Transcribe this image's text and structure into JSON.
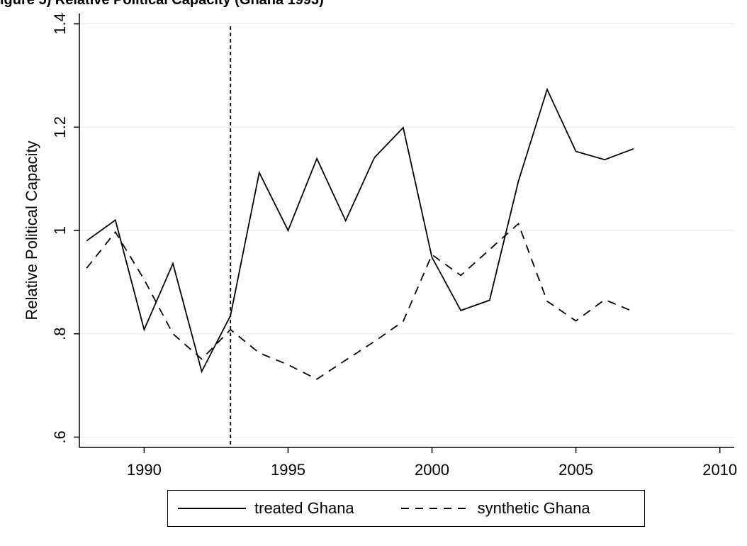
{
  "caption": "igure 5) Relative Political Capacity (Ghana 1993)",
  "chart_data": {
    "type": "line",
    "title": "",
    "xlabel": "",
    "ylabel": "Relative Political Capacity",
    "xlim": [
      1987.75,
      2010.5
    ],
    "ylim": [
      0.58,
      1.42
    ],
    "xticks": [
      1990,
      1995,
      2000,
      2005,
      2010
    ],
    "yticks": [
      0.6,
      0.8,
      1.0,
      1.2,
      1.4
    ],
    "xtick_labels": [
      "1990",
      "1995",
      "2000",
      "2005",
      "2010"
    ],
    "ytick_labels": [
      ".6",
      ".8",
      "1",
      "1.2",
      "1.4"
    ],
    "grid": true,
    "vertical_line": 1993,
    "legend_position": "bottom",
    "x": [
      1988,
      1989,
      1990,
      1991,
      1992,
      1993,
      1994,
      1995,
      1996,
      1997,
      1998,
      1999,
      2000,
      2001,
      2002,
      2003,
      2004,
      2005,
      2006,
      2007
    ],
    "series": [
      {
        "name": "treated Ghana",
        "style": "solid",
        "values": [
          0.98,
          1.02,
          0.808,
          0.936,
          0.727,
          0.835,
          1.112,
          1.0,
          1.139,
          1.019,
          1.141,
          1.199,
          0.948,
          0.845,
          0.865,
          1.095,
          1.273,
          1.153,
          1.137,
          1.158
        ]
      },
      {
        "name": "synthetic Ghana",
        "style": "dashed",
        "values": [
          0.927,
          0.997,
          0.905,
          0.8,
          0.751,
          0.808,
          0.763,
          0.74,
          0.712,
          0.749,
          0.785,
          0.824,
          0.953,
          0.913,
          0.963,
          1.013,
          0.863,
          0.825,
          0.866,
          0.843
        ]
      }
    ]
  },
  "legend": {
    "items": [
      {
        "label": "treated Ghana"
      },
      {
        "label": "synthetic Ghana"
      }
    ]
  }
}
